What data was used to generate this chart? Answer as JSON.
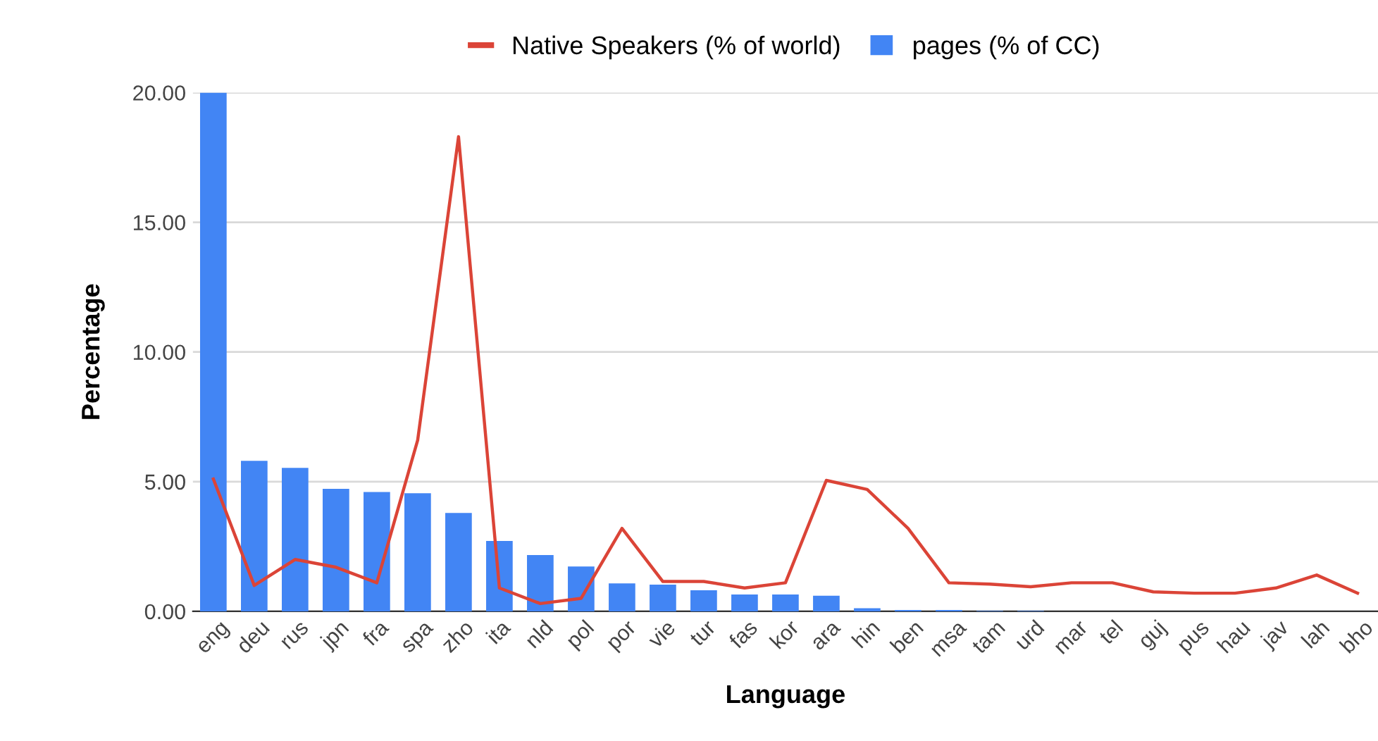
{
  "chart_data": {
    "type": "bar",
    "xlabel": "Language",
    "ylabel": "Percentage",
    "categories": [
      "eng",
      "deu",
      "rus",
      "jpn",
      "fra",
      "spa",
      "zho",
      "ita",
      "nld",
      "pol",
      "por",
      "vie",
      "tur",
      "fas",
      "kor",
      "ara",
      "hin",
      "ben",
      "msa",
      "tam",
      "urd",
      "mar",
      "tel",
      "guj",
      "pus",
      "hau",
      "jav",
      "lah",
      "bho"
    ],
    "series": [
      {
        "name": "Native Speakers (% of world)",
        "type": "line",
        "color": "#db4437",
        "values": [
          5.1,
          1.0,
          2.0,
          1.7,
          1.1,
          6.6,
          18.3,
          0.9,
          0.3,
          0.5,
          3.2,
          1.15,
          1.15,
          0.9,
          1.1,
          5.05,
          4.7,
          3.2,
          1.1,
          1.05,
          0.95,
          1.1,
          1.1,
          0.75,
          0.7,
          0.7,
          0.9,
          1.4,
          0.7
        ]
      },
      {
        "name": "pages (% of CC)",
        "color": "#4285f4",
        "values": [
          20,
          5.8,
          5.53,
          4.72,
          4.6,
          4.55,
          3.79,
          2.71,
          2.17,
          1.73,
          1.08,
          1.03,
          0.81,
          0.65,
          0.65,
          0.6,
          0.12,
          0.05,
          0.05,
          0.02,
          0.02,
          0,
          0,
          0,
          0,
          0,
          0,
          0,
          0
        ]
      }
    ],
    "ylim": [
      0,
      20
    ],
    "yticks": [
      {
        "value": 0,
        "label": "0.00"
      },
      {
        "value": 5,
        "label": "5.00"
      },
      {
        "value": 10,
        "label": "10.00"
      },
      {
        "value": 15,
        "label": "15.00"
      },
      {
        "value": 20,
        "label": "20.00"
      }
    ],
    "grid": "y",
    "legend": "top",
    "marker": "none",
    "line_style": "solid"
  }
}
